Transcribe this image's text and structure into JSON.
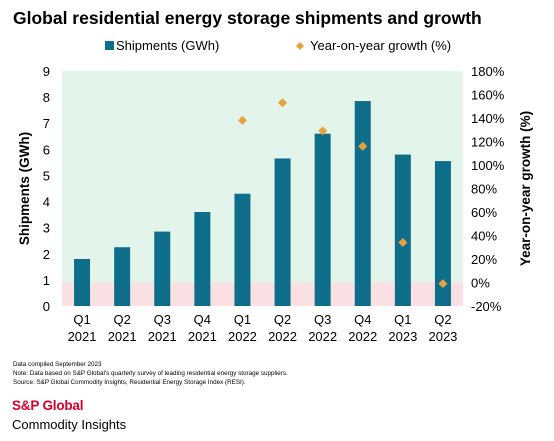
{
  "title": "Global residential energy storage shipments and growth",
  "chart_data": {
    "type": "bar",
    "categories": [
      [
        "Q1",
        "2021"
      ],
      [
        "Q2",
        "2021"
      ],
      [
        "Q3",
        "2021"
      ],
      [
        "Q4",
        "2021"
      ],
      [
        "Q1",
        "2022"
      ],
      [
        "Q2",
        "2022"
      ],
      [
        "Q3",
        "2022"
      ],
      [
        "Q4",
        "2022"
      ],
      [
        "Q1",
        "2023"
      ],
      [
        "Q2",
        "2023"
      ]
    ],
    "series": [
      {
        "name": "Shipments (GWh)",
        "type": "bar",
        "axis": "left",
        "color": "#0e6e8a",
        "values": [
          1.8,
          2.25,
          2.85,
          3.6,
          4.3,
          5.65,
          6.6,
          7.85,
          5.8,
          5.55
        ]
      },
      {
        "name": "Year-on-year growth (%)",
        "type": "scatter",
        "axis": "right",
        "marker": "diamond",
        "color": "#e8a23c",
        "values": [
          null,
          null,
          null,
          null,
          138,
          153,
          129,
          116,
          34,
          -1
        ]
      }
    ],
    "ylabel": "Shipments (GWh)",
    "y2label": "Year-on-year growth (%)",
    "ylim": [
      0,
      9
    ],
    "y2lim": [
      -20,
      180
    ],
    "yticks": [
      "0",
      "1",
      "2",
      "3",
      "4",
      "5",
      "6",
      "7",
      "8",
      "9"
    ],
    "y2ticks": [
      "-20%",
      "0%",
      "20%",
      "40%",
      "60%",
      "80%",
      "100%",
      "120%",
      "140%",
      "160%",
      "180%"
    ],
    "legend_position": "top",
    "background_bands": [
      {
        "from_y2": 0,
        "to_y2": 180,
        "color": "#e3f5ea"
      },
      {
        "from_y2": -20,
        "to_y2": 0,
        "color": "#fbe0e3"
      }
    ]
  },
  "footnotes": [
    "Data compiled September 2023",
    "Note: Data based on S&P Global's quarterly survey of leading residential energy storage suppliers.",
    "Source: S&P Global Commodity Insights, Residential Energy Storage Index (RESI)."
  ],
  "logo": {
    "line1": "S&P Global",
    "line2": "Commodity Insights"
  }
}
